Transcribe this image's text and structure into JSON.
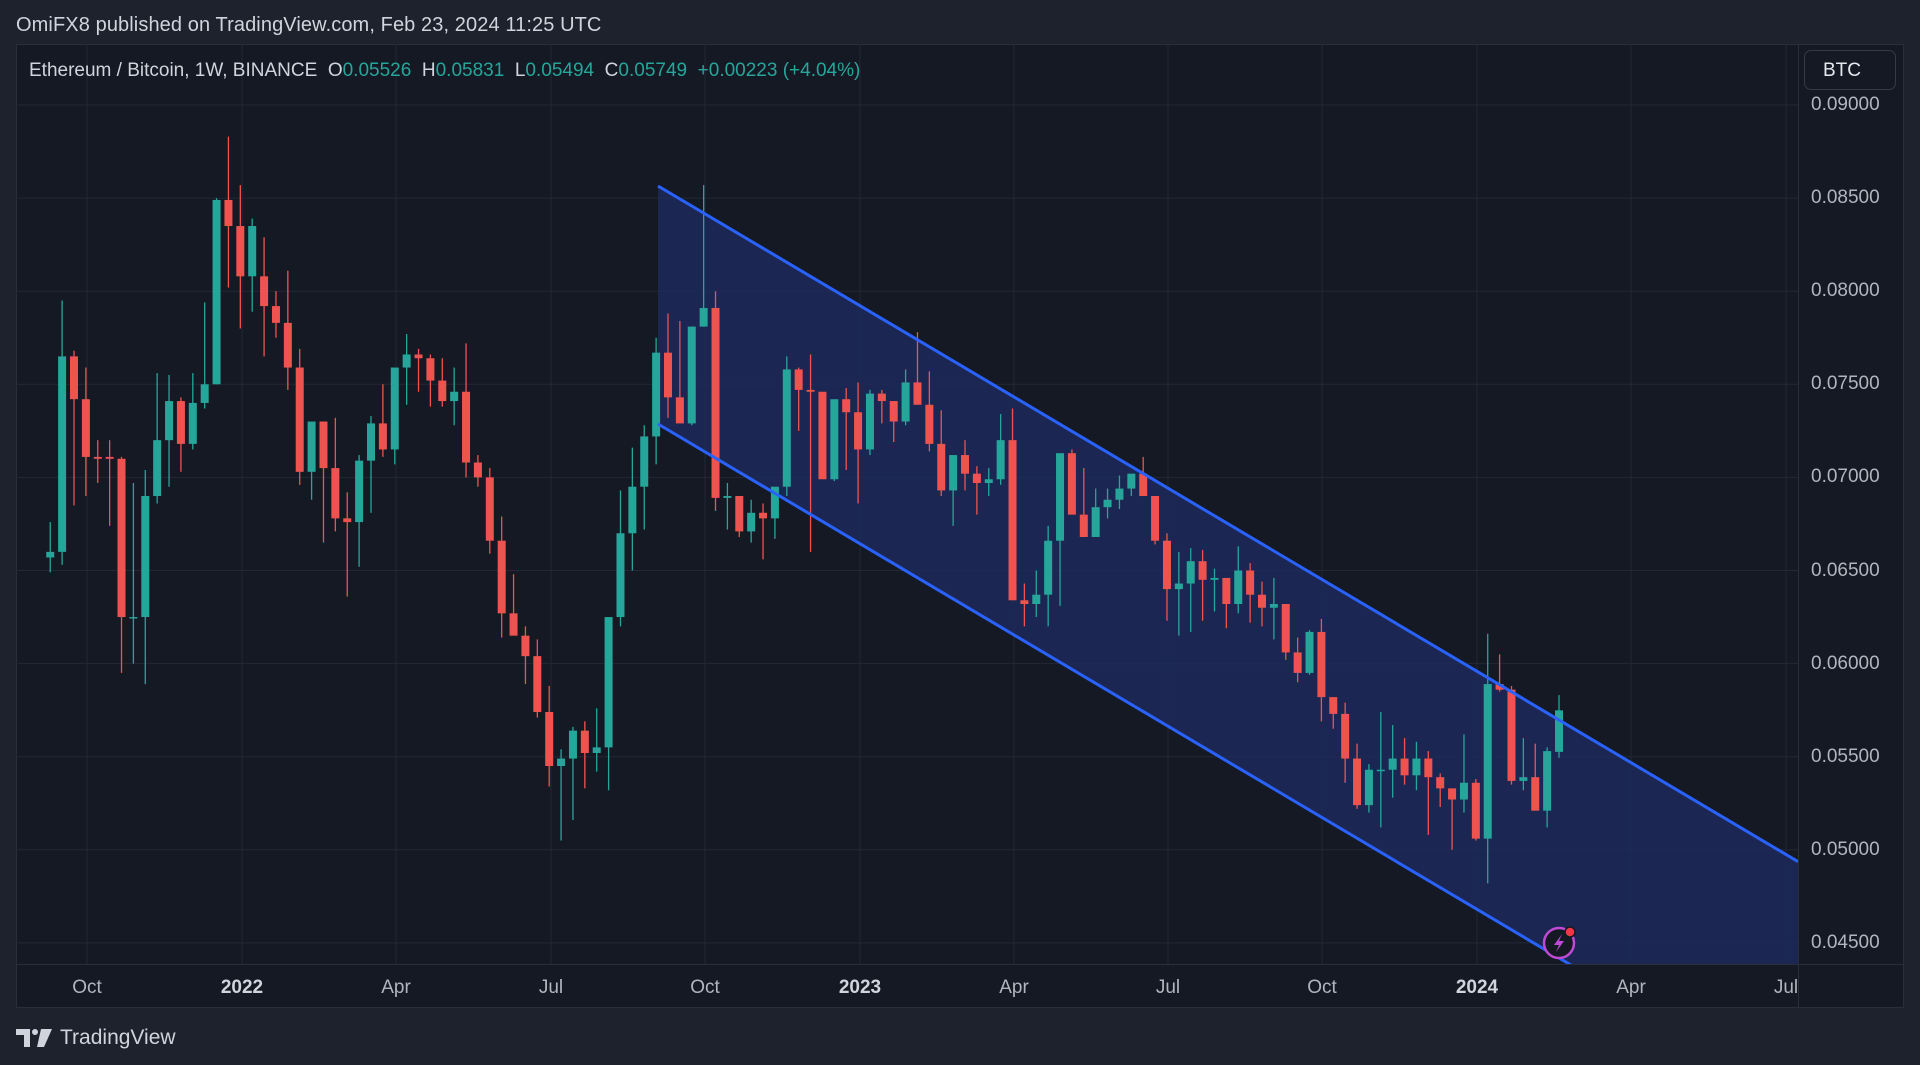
{
  "header": {
    "published_text": "OmiFX8 published on TradingView.com, Feb 23, 2024 11:25 UTC"
  },
  "legend": {
    "symbol": "Ethereum / Bitcoin, 1W, BINANCE",
    "o_label": "O",
    "o_value": "0.05526",
    "h_label": "H",
    "h_value": "0.05831",
    "l_label": "L",
    "l_value": "0.05494",
    "c_label": "C",
    "c_value": "0.05749",
    "change": "+0.00223 (+4.04%)"
  },
  "price_axis": {
    "currency_button": "BTC",
    "labels": [
      "0.09000",
      "0.08500",
      "0.08000",
      "0.07500",
      "0.07000",
      "0.06500",
      "0.06000",
      "0.05500",
      "0.05000",
      "0.04500"
    ]
  },
  "time_axis": {
    "labels": [
      {
        "text": "Oct",
        "year": false
      },
      {
        "text": "2022",
        "year": true
      },
      {
        "text": "Apr",
        "year": false
      },
      {
        "text": "Jul",
        "year": false
      },
      {
        "text": "Oct",
        "year": false
      },
      {
        "text": "2023",
        "year": true
      },
      {
        "text": "Apr",
        "year": false
      },
      {
        "text": "Jul",
        "year": false
      },
      {
        "text": "Oct",
        "year": false
      },
      {
        "text": "2024",
        "year": true
      },
      {
        "text": "Apr",
        "year": false
      },
      {
        "text": "Jul",
        "year": false
      }
    ]
  },
  "footer": {
    "brand": "TradingView"
  },
  "colors": {
    "up": "#26a69a",
    "down": "#ef5350",
    "channel_line": "#2962ff",
    "channel_fill": "#1c2a5a",
    "grid": "#242835",
    "alert_icon": "#c049d6",
    "alert_dot": "#f23645"
  },
  "chart_data": {
    "type": "candlestick",
    "title": "Ethereum / Bitcoin, 1W, BINANCE",
    "xlabel": "",
    "ylabel": "BTC",
    "ylim": [
      0.0445,
      0.0915
    ],
    "x_ticks": [
      "Oct",
      "2022",
      "Apr",
      "Jul",
      "Oct",
      "2023",
      "Apr",
      "Jul",
      "Oct",
      "2024",
      "Apr",
      "Jul"
    ],
    "y_ticks": [
      0.09,
      0.085,
      0.08,
      0.075,
      0.07,
      0.065,
      0.06,
      0.055,
      0.05,
      0.045
    ],
    "grid": true,
    "last_bar": {
      "open": 0.05526,
      "high": 0.05831,
      "low": 0.05494,
      "close": 0.05749,
      "change": 0.00223,
      "change_pct": 4.04
    },
    "ohlc": [
      [
        0.0657,
        0.0676,
        0.0649,
        0.066
      ],
      [
        0.066,
        0.0795,
        0.0653,
        0.0765
      ],
      [
        0.0765,
        0.0768,
        0.0685,
        0.0742
      ],
      [
        0.0742,
        0.0759,
        0.069,
        0.0711
      ],
      [
        0.0711,
        0.072,
        0.0697,
        0.071
      ],
      [
        0.0711,
        0.072,
        0.0674,
        0.071
      ],
      [
        0.071,
        0.0711,
        0.0595,
        0.0625
      ],
      [
        0.0625,
        0.0697,
        0.06,
        0.0625
      ],
      [
        0.0625,
        0.0704,
        0.0589,
        0.069
      ],
      [
        0.069,
        0.0756,
        0.0686,
        0.072
      ],
      [
        0.072,
        0.0755,
        0.0695,
        0.0741
      ],
      [
        0.0741,
        0.0743,
        0.0703,
        0.0718
      ],
      [
        0.0718,
        0.0756,
        0.0715,
        0.074
      ],
      [
        0.074,
        0.0794,
        0.0737,
        0.075
      ],
      [
        0.075,
        0.085,
        0.075,
        0.0849
      ],
      [
        0.0849,
        0.0883,
        0.0802,
        0.0835
      ],
      [
        0.0835,
        0.0857,
        0.078,
        0.0808
      ],
      [
        0.0808,
        0.0839,
        0.0789,
        0.0835
      ],
      [
        0.0808,
        0.0829,
        0.0765,
        0.0792
      ],
      [
        0.0792,
        0.08,
        0.0775,
        0.0783
      ],
      [
        0.0783,
        0.0811,
        0.0747,
        0.0759
      ],
      [
        0.0759,
        0.0769,
        0.0696,
        0.0703
      ],
      [
        0.0703,
        0.0721,
        0.0688,
        0.073
      ],
      [
        0.073,
        0.073,
        0.0665,
        0.0705
      ],
      [
        0.0705,
        0.0732,
        0.0671,
        0.0678
      ],
      [
        0.0678,
        0.0692,
        0.0636,
        0.0676
      ],
      [
        0.0676,
        0.0712,
        0.0652,
        0.0709
      ],
      [
        0.0709,
        0.0733,
        0.0681,
        0.0729
      ],
      [
        0.0729,
        0.075,
        0.0711,
        0.0715
      ],
      [
        0.0715,
        0.0754,
        0.0707,
        0.0759
      ],
      [
        0.0759,
        0.0777,
        0.0739,
        0.0766
      ],
      [
        0.0766,
        0.0769,
        0.0746,
        0.0764
      ],
      [
        0.0764,
        0.0766,
        0.0738,
        0.0752
      ],
      [
        0.0752,
        0.0764,
        0.0738,
        0.0741
      ],
      [
        0.0741,
        0.0759,
        0.0728,
        0.0746
      ],
      [
        0.0746,
        0.0772,
        0.07,
        0.0708
      ],
      [
        0.0708,
        0.0712,
        0.0695,
        0.07
      ],
      [
        0.07,
        0.0705,
        0.0659,
        0.0666
      ],
      [
        0.0666,
        0.0679,
        0.0614,
        0.0627
      ],
      [
        0.0627,
        0.0648,
        0.0619,
        0.0615
      ],
      [
        0.0615,
        0.062,
        0.0589,
        0.0604
      ],
      [
        0.0604,
        0.0613,
        0.0571,
        0.0574
      ],
      [
        0.0574,
        0.0588,
        0.0534,
        0.0545
      ],
      [
        0.0545,
        0.0554,
        0.0505,
        0.0549
      ],
      [
        0.0549,
        0.0566,
        0.0516,
        0.0564
      ],
      [
        0.0564,
        0.0569,
        0.0533,
        0.0552
      ],
      [
        0.0552,
        0.0576,
        0.0542,
        0.0555
      ],
      [
        0.0555,
        0.0608,
        0.0532,
        0.0625
      ],
      [
        0.0625,
        0.0693,
        0.062,
        0.067
      ],
      [
        0.067,
        0.0716,
        0.065,
        0.0695
      ],
      [
        0.0695,
        0.0728,
        0.0672,
        0.0722
      ],
      [
        0.0722,
        0.0775,
        0.0707,
        0.0767
      ],
      [
        0.0767,
        0.0788,
        0.0732,
        0.0743
      ],
      [
        0.0743,
        0.0784,
        0.0731,
        0.0729
      ],
      [
        0.0729,
        0.0781,
        0.0728,
        0.0781
      ],
      [
        0.0781,
        0.0857,
        0.0781,
        0.0791
      ],
      [
        0.0791,
        0.08,
        0.0682,
        0.0689
      ],
      [
        0.0689,
        0.0697,
        0.0672,
        0.069
      ],
      [
        0.069,
        0.0683,
        0.0668,
        0.0671
      ],
      [
        0.0671,
        0.0688,
        0.0665,
        0.0681
      ],
      [
        0.0681,
        0.0686,
        0.0656,
        0.0678
      ],
      [
        0.0678,
        0.0683,
        0.0667,
        0.0695
      ],
      [
        0.0695,
        0.0765,
        0.069,
        0.0758
      ],
      [
        0.0758,
        0.0759,
        0.0725,
        0.0747
      ],
      [
        0.0747,
        0.0766,
        0.066,
        0.0746
      ],
      [
        0.0746,
        0.0733,
        0.0715,
        0.0699
      ],
      [
        0.0699,
        0.0739,
        0.0698,
        0.0742
      ],
      [
        0.0742,
        0.0748,
        0.0704,
        0.0735
      ],
      [
        0.0735,
        0.0751,
        0.0686,
        0.0715
      ],
      [
        0.0715,
        0.0747,
        0.0712,
        0.0745
      ],
      [
        0.0745,
        0.0747,
        0.0729,
        0.0741
      ],
      [
        0.0741,
        0.0731,
        0.0719,
        0.073
      ],
      [
        0.073,
        0.0758,
        0.0728,
        0.0751
      ],
      [
        0.0751,
        0.0778,
        0.0744,
        0.0739
      ],
      [
        0.0739,
        0.0757,
        0.0714,
        0.0718
      ],
      [
        0.0718,
        0.0736,
        0.069,
        0.0693
      ],
      [
        0.0693,
        0.0711,
        0.0674,
        0.0712
      ],
      [
        0.0712,
        0.072,
        0.0693,
        0.0702
      ],
      [
        0.0702,
        0.0706,
        0.068,
        0.0697
      ],
      [
        0.0697,
        0.0705,
        0.069,
        0.0699
      ],
      [
        0.0699,
        0.0734,
        0.0696,
        0.072
      ],
      [
        0.072,
        0.0737,
        0.064,
        0.0634
      ],
      [
        0.0634,
        0.0643,
        0.062,
        0.0632
      ],
      [
        0.0632,
        0.065,
        0.0625,
        0.0637
      ],
      [
        0.0637,
        0.0674,
        0.062,
        0.0666
      ],
      [
        0.0666,
        0.0706,
        0.0631,
        0.0713
      ],
      [
        0.0713,
        0.0715,
        0.0688,
        0.068
      ],
      [
        0.068,
        0.0705,
        0.068,
        0.0668
      ],
      [
        0.0668,
        0.0694,
        0.067,
        0.0684
      ],
      [
        0.0684,
        0.0694,
        0.0678,
        0.0688
      ],
      [
        0.0688,
        0.0701,
        0.0683,
        0.0694
      ],
      [
        0.0694,
        0.0697,
        0.069,
        0.0702
      ],
      [
        0.0702,
        0.0711,
        0.069,
        0.069
      ],
      [
        0.069,
        0.068,
        0.0664,
        0.0666
      ],
      [
        0.0666,
        0.067,
        0.0623,
        0.064
      ],
      [
        0.064,
        0.066,
        0.0615,
        0.0643
      ],
      [
        0.0643,
        0.0662,
        0.0617,
        0.0655
      ],
      [
        0.0655,
        0.0661,
        0.0623,
        0.0645
      ],
      [
        0.0645,
        0.0651,
        0.0628,
        0.0646
      ],
      [
        0.0646,
        0.064,
        0.0619,
        0.0632
      ],
      [
        0.0632,
        0.0663,
        0.0627,
        0.065
      ],
      [
        0.065,
        0.0654,
        0.0622,
        0.0637
      ],
      [
        0.0637,
        0.0644,
        0.062,
        0.063
      ],
      [
        0.063,
        0.0646,
        0.0613,
        0.0632
      ],
      [
        0.0632,
        0.0626,
        0.0602,
        0.0606
      ],
      [
        0.0606,
        0.0614,
        0.059,
        0.0595
      ],
      [
        0.0595,
        0.0618,
        0.0594,
        0.0617
      ],
      [
        0.0617,
        0.0624,
        0.0569,
        0.0582
      ],
      [
        0.0582,
        0.0581,
        0.0565,
        0.0573
      ],
      [
        0.0573,
        0.0579,
        0.0536,
        0.0549
      ],
      [
        0.0549,
        0.0557,
        0.0522,
        0.0524
      ],
      [
        0.0524,
        0.0546,
        0.052,
        0.0543
      ],
      [
        0.0543,
        0.0574,
        0.0512,
        0.0543
      ],
      [
        0.0543,
        0.0567,
        0.0528,
        0.0549
      ],
      [
        0.0549,
        0.056,
        0.0535,
        0.054
      ],
      [
        0.054,
        0.0558,
        0.0532,
        0.0549
      ],
      [
        0.0549,
        0.0553,
        0.0508,
        0.0539
      ],
      [
        0.0539,
        0.0541,
        0.0523,
        0.0533
      ],
      [
        0.0533,
        0.0531,
        0.05,
        0.0527
      ],
      [
        0.0527,
        0.0562,
        0.052,
        0.0536
      ],
      [
        0.0536,
        0.0538,
        0.0505,
        0.0506
      ],
      [
        0.0506,
        0.0616,
        0.0482,
        0.0589
      ],
      [
        0.0589,
        0.0605,
        0.0585,
        0.0586
      ],
      [
        0.0586,
        0.0588,
        0.0535,
        0.0537
      ],
      [
        0.0537,
        0.056,
        0.0532,
        0.0539
      ],
      [
        0.0539,
        0.0557,
        0.0522,
        0.0521
      ],
      [
        0.0521,
        0.0555,
        0.0512,
        0.0553
      ],
      [
        0.05526,
        0.05831,
        0.05494,
        0.05749
      ]
    ],
    "channel": {
      "upper": [
        {
          "date": "2022-09-05",
          "price": 0.0856
        },
        {
          "date": "2024-07-01",
          "price": 0.0494
        }
      ],
      "lower": [
        {
          "date": "2022-09-05",
          "price": 0.0729
        },
        {
          "date": "2024-02-19",
          "price": 0.0445
        }
      ]
    }
  }
}
